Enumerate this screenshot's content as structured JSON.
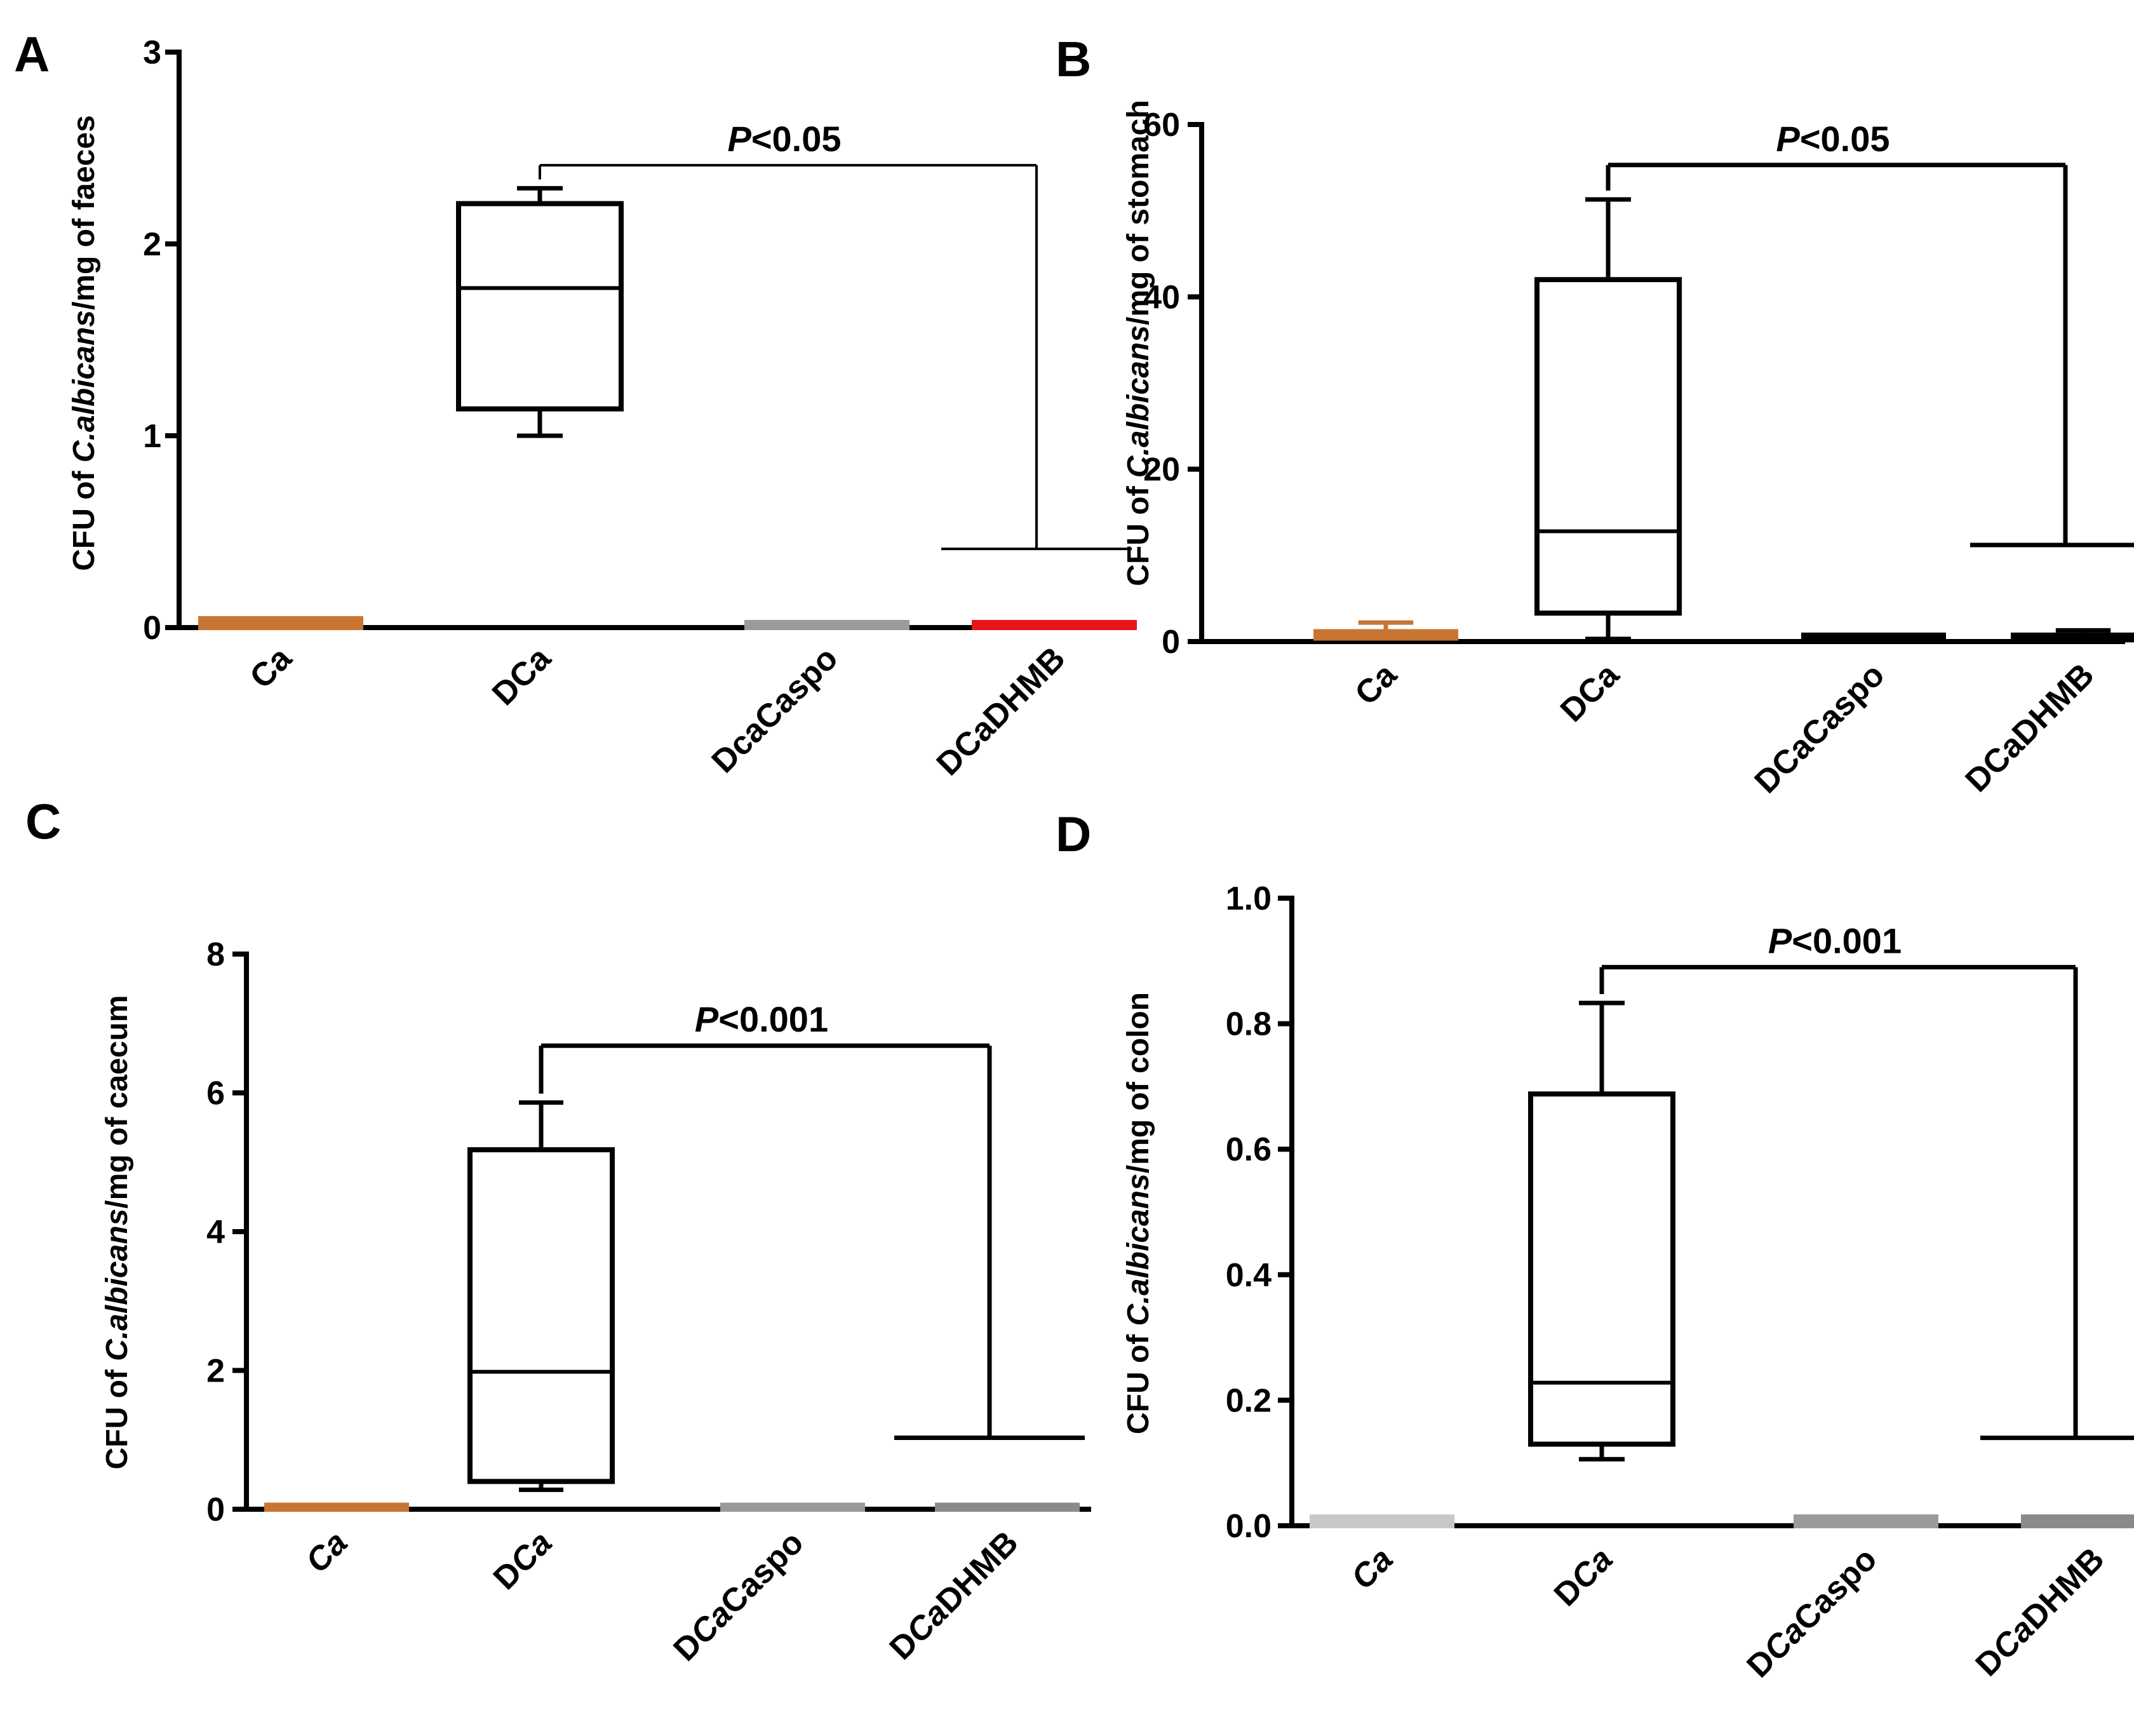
{
  "chart_data": [
    {
      "panel": "A",
      "type": "box",
      "ylabel_parts": [
        "CFU of ",
        "C.albicans",
        "/mg of faeces"
      ],
      "ylim": [
        0,
        3
      ],
      "yticks": [
        "0",
        "1",
        "2",
        "3"
      ],
      "categories": [
        "Ca",
        "DCa",
        "DcaCaspo",
        "DCaDHMB"
      ],
      "category_italic": [
        null,
        null,
        null,
        null
      ],
      "category_colors": [
        "#c87533",
        "#000000",
        "#9a9a9a",
        "#e8141c"
      ],
      "boxes": [
        {
          "min": 0.0,
          "q1": 0.0,
          "median": 0.02,
          "q3": 0.04,
          "max": 0.04
        },
        {
          "min": 1.0,
          "q1": 1.14,
          "median": 1.77,
          "q3": 2.21,
          "max": 2.29
        },
        {
          "min": 0.0,
          "q1": 0.0,
          "median": 0.01,
          "q3": 0.02,
          "max": 0.02
        },
        {
          "min": 0.0,
          "q1": 0.0,
          "median": 0.01,
          "q3": 0.02,
          "max": 0.02
        }
      ],
      "significance": {
        "p_prefix": "P",
        "p_text": "<0.05",
        "from": 1,
        "to": 3,
        "bracket_top": 2.41,
        "right_end": 0.41
      }
    },
    {
      "panel": "B",
      "type": "box",
      "ylabel_parts": [
        "CFU of ",
        "C.albicans",
        "/mg of stomach"
      ],
      "ylim": [
        0,
        60
      ],
      "yticks": [
        "0",
        "20",
        "40",
        "60"
      ],
      "categories": [
        "Ca",
        "DCa",
        "DCaCaspo",
        "DCaDHMB"
      ],
      "category_italic": [
        null,
        null,
        null,
        null
      ],
      "category_colors": [
        "#c87533",
        "#000000",
        "#000000",
        "#000000"
      ],
      "boxes": [
        {
          "min": 0.1,
          "q1": 0.4,
          "median": 0.9,
          "q3": 1.0,
          "max": 2.2
        },
        {
          "min": 0.3,
          "q1": 3.3,
          "median": 12.8,
          "q3": 42.0,
          "max": 51.3
        },
        {
          "min": 0.1,
          "q1": 0.2,
          "median": 0.4,
          "q3": 0.6,
          "max": 0.9
        },
        {
          "min": 0.1,
          "q1": 0.2,
          "median": 0.4,
          "q3": 0.6,
          "max": 1.3
        }
      ],
      "significance": {
        "p_prefix": "P",
        "p_text": "<0.05",
        "from": 1,
        "to": 3,
        "bracket_top": 55.3,
        "right_end": 11.2
      }
    },
    {
      "panel": "C",
      "type": "box",
      "ylabel_parts": [
        "CFU of ",
        "C.albicans",
        "/mg of caecum"
      ],
      "ylim": [
        0,
        8
      ],
      "yticks": [
        "0",
        "2",
        "4",
        "6",
        "8"
      ],
      "categories": [
        "Ca",
        "DCa",
        "DCaCaspo",
        "DCaDHMB"
      ],
      "category_italic": [
        [
          0,
          2
        ],
        [
          1,
          3
        ],
        [
          1,
          3
        ],
        [
          1,
          3
        ]
      ],
      "category_colors": [
        "#c87533",
        "#000000",
        "#9a9a9a",
        "#8a8a8a"
      ],
      "boxes": [
        {
          "min": 0.0,
          "q1": 0.0,
          "median": 0.02,
          "q3": 0.04,
          "max": 0.04
        },
        {
          "min": 0.28,
          "q1": 0.4,
          "median": 1.98,
          "q3": 5.18,
          "max": 5.86
        },
        {
          "min": 0.0,
          "q1": 0.0,
          "median": 0.02,
          "q3": 0.04,
          "max": 0.04
        },
        {
          "min": 0.0,
          "q1": 0.0,
          "median": 0.02,
          "q3": 0.04,
          "max": 0.04
        }
      ],
      "significance": {
        "p_prefix": "P",
        "p_text": "<0.001",
        "from": 1,
        "to": 3,
        "bracket_top": 6.68,
        "right_end": 1.03
      }
    },
    {
      "panel": "D",
      "type": "box",
      "ylabel_parts": [
        "CFU of ",
        "C.albicans",
        "/mg of colon"
      ],
      "ylim": [
        0,
        1.0
      ],
      "yticks": [
        "0.0",
        "0.2",
        "0.4",
        "0.6",
        "0.8",
        "1.0"
      ],
      "categories": [
        "Ca",
        "DCa",
        "DCaCaspo",
        "DCaDHMB"
      ],
      "category_italic": [
        [
          0,
          2
        ],
        [
          1,
          3
        ],
        [
          1,
          3
        ],
        [
          1,
          3
        ]
      ],
      "category_colors": [
        "#c8c8c8",
        "#000000",
        "#9a9a9a",
        "#8a8a8a"
      ],
      "boxes": [
        {
          "min": 0.0,
          "q1": 0.0,
          "median": 0.01,
          "q3": 0.012,
          "max": 0.012
        },
        {
          "min": 0.106,
          "q1": 0.13,
          "median": 0.228,
          "q3": 0.688,
          "max": 0.833
        },
        {
          "min": 0.0,
          "q1": 0.0,
          "median": 0.01,
          "q3": 0.012,
          "max": 0.012
        },
        {
          "min": 0.0,
          "q1": 0.0,
          "median": 0.01,
          "q3": 0.012,
          "max": 0.012
        }
      ],
      "significance": {
        "p_prefix": "P",
        "p_text": "<0.001",
        "from": 1,
        "to": 3,
        "bracket_top": 0.89,
        "right_end": 0.14
      }
    }
  ]
}
